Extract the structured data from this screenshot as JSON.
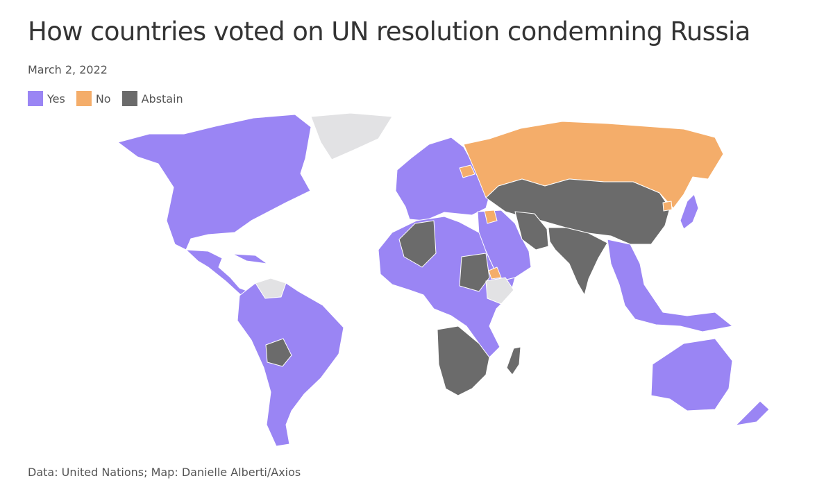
{
  "title": "How countries voted on UN resolution condemning Russia",
  "subtitle": "March 2, 2022",
  "legend": [
    {
      "label": "Yes",
      "color": "#9a85f4"
    },
    {
      "label": "No",
      "color": "#f4ad6a"
    },
    {
      "label": "Abstain",
      "color": "#6b6b6b"
    }
  ],
  "colors": {
    "no_vote": "#e2e2e4",
    "border": "#ffffff"
  },
  "map": {
    "regions": [
      {
        "name": "North America",
        "vote": "Yes"
      },
      {
        "name": "Greenland",
        "vote": "none"
      },
      {
        "name": "Central America and Caribbean",
        "vote": "Yes"
      },
      {
        "name": "Venezuela",
        "vote": "none"
      },
      {
        "name": "South America",
        "vote": "Yes"
      },
      {
        "name": "Bolivia",
        "vote": "Abstain"
      },
      {
        "name": "Europe",
        "vote": "Yes"
      },
      {
        "name": "Belarus",
        "vote": "No"
      },
      {
        "name": "Russia",
        "vote": "No"
      },
      {
        "name": "Central and East Asia",
        "vote": "Abstain"
      },
      {
        "name": "Middle East",
        "vote": "Yes"
      },
      {
        "name": "Iran",
        "vote": "Abstain"
      },
      {
        "name": "Syria",
        "vote": "No"
      },
      {
        "name": "South Asia",
        "vote": "Abstain"
      },
      {
        "name": "Southeast Asia",
        "vote": "Yes"
      },
      {
        "name": "Japan",
        "vote": "Yes"
      },
      {
        "name": "North Korea",
        "vote": "No"
      },
      {
        "name": "Africa",
        "vote": "Yes"
      },
      {
        "name": "Algeria",
        "vote": "Abstain"
      },
      {
        "name": "Sudan",
        "vote": "Abstain"
      },
      {
        "name": "Ethiopia",
        "vote": "none"
      },
      {
        "name": "Eritrea",
        "vote": "No"
      },
      {
        "name": "Southern Africa",
        "vote": "Abstain"
      },
      {
        "name": "Madagascar",
        "vote": "Abstain"
      },
      {
        "name": "Australia",
        "vote": "Yes"
      },
      {
        "name": "New Zealand",
        "vote": "Yes"
      }
    ]
  },
  "source": "Data: United Nations; Map: Danielle Alberti/Axios"
}
